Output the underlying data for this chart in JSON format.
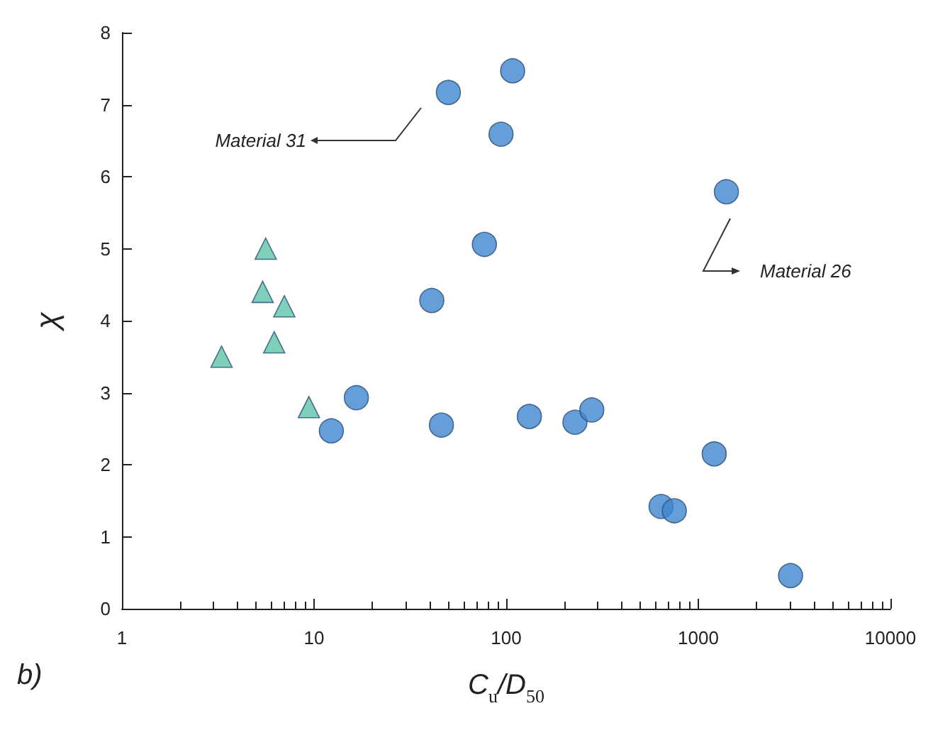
{
  "chart_data": {
    "type": "scatter",
    "xlabel": "C$_{u}$/D$_{50}$",
    "ylabel": "χ",
    "log": "x",
    "xlim": [
      1,
      10000
    ],
    "xticks": [
      1,
      10,
      100,
      1000,
      10000
    ],
    "ylim": [
      0,
      8
    ],
    "yticks": [
      0,
      1,
      2,
      3,
      4,
      5,
      6,
      7,
      8
    ],
    "grid": false,
    "series": [
      {
        "color": "#5ec4a6",
        "marker": "triangle",
        "x": [
          5.6,
          5.4,
          7.0,
          6.2,
          3.3,
          9.4
        ],
        "values": [
          5.0,
          4.4,
          4.2,
          3.7,
          3.5,
          2.8
        ]
      },
      {
        "color": "#3f86cf",
        "marker": "circle",
        "x": [
          12.3,
          16.6,
          50,
          108,
          94,
          77,
          41,
          1400,
          46,
          132,
          228,
          279,
          1210,
          640,
          750,
          3020
        ],
        "values": [
          2.47,
          2.93,
          7.17,
          7.47,
          6.59,
          5.06,
          4.28,
          5.79,
          2.55,
          2.67,
          2.59,
          2.76,
          2.15,
          1.42,
          1.36,
          0.46
        ]
      }
    ],
    "annotations": [
      "Material 31",
      "Material 26",
      "b)"
    ]
  }
}
